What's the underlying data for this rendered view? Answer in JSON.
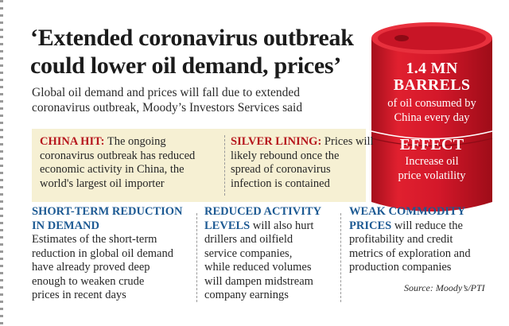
{
  "headline": {
    "line1": "‘Extended coronavirus outbreak",
    "line2": "could lower oil demand, prices’"
  },
  "subhead": {
    "line1": "Global oil demand and prices will fall due to extended",
    "line2": "coronavirus outbreak, Moody’s Investors Services said"
  },
  "barrel": {
    "stat_value": "1.4 MN",
    "stat_unit": "BARRELS",
    "stat_desc_line1": "of oil consumed by",
    "stat_desc_line2": "China every day",
    "effect_title": "EFFECT",
    "effect_line1": "Increase oil",
    "effect_line2": "price volatility",
    "color": "#d4182a"
  },
  "china_hit": {
    "keyword": "CHINA HIT:",
    "line1_rest": " The ongoing",
    "line2": "coronavirus outbreak has reduced",
    "line3": "economic activity in China, the",
    "line4": "world's largest oil importer"
  },
  "silver_lining": {
    "keyword": "SILVER LINING:",
    "line1_rest": " Prices will",
    "line2": "likely rebound once the",
    "line3": "spread of coronavirus",
    "line4": "infection is contained"
  },
  "short_term": {
    "heading1": "SHORT-TERM REDUCTION",
    "heading2": "IN DEMAND",
    "line1": "Estimates of the short-term",
    "line2": "reduction in global oil demand",
    "line3": "have already proved deep",
    "line4": "enough to weaken crude",
    "line5": "prices in recent days"
  },
  "reduced_activity": {
    "heading1": "REDUCED ACTIVITY",
    "heading2": "LEVELS",
    "line1_rest": " will also hurt",
    "line2": "drillers and oilfield",
    "line3": "service companies,",
    "line4": "while reduced volumes",
    "line5": "will dampen midstream",
    "line6": "company earnings"
  },
  "weak_commodity": {
    "heading1": "WEAK COMMODITY",
    "heading2": "PRICES",
    "line1_rest": " will reduce the",
    "line2": "profitability and credit",
    "line3": "metrics of exploration and",
    "line4": "production companies"
  },
  "source": "Source: Moody’s/PTI",
  "colors": {
    "accent_red": "#b6161d",
    "accent_blue": "#1d5a93",
    "band_bg": "#f6f0d3"
  }
}
